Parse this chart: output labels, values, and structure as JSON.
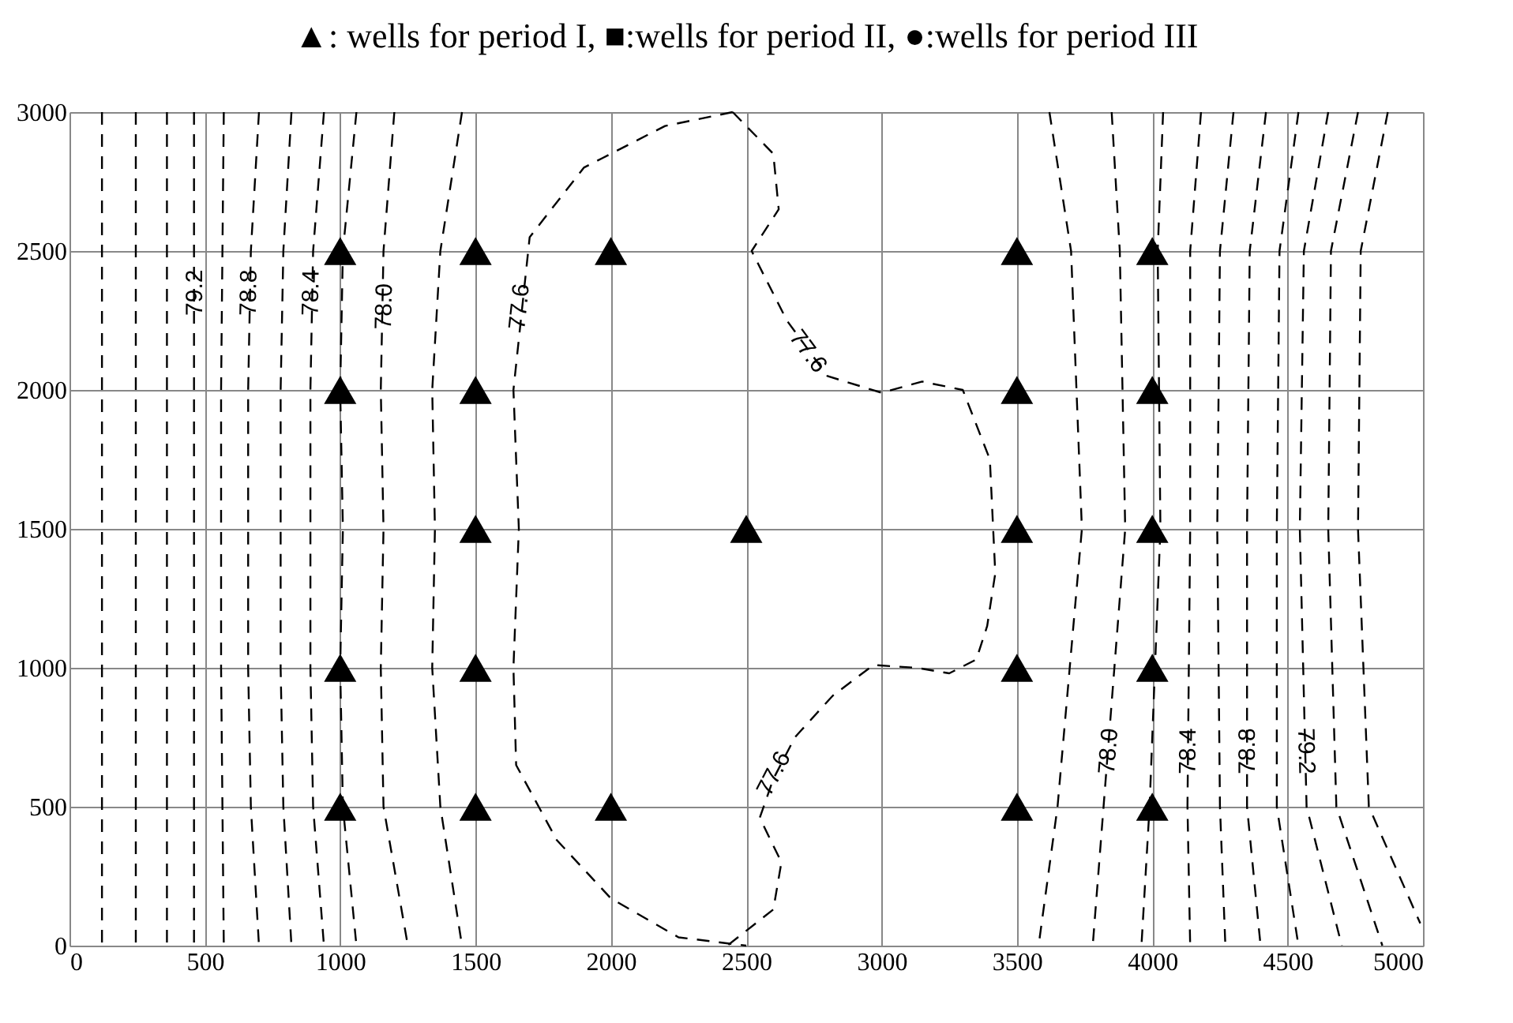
{
  "chart_data": {
    "type": "scatter",
    "title": "▲: wells for period I, ■:wells for period II, ●:wells for period III",
    "xlim": [
      0,
      5000
    ],
    "ylim": [
      0,
      3000
    ],
    "xticks": [
      0,
      500,
      1000,
      1500,
      2000,
      2500,
      3000,
      3500,
      4000,
      4500,
      5000
    ],
    "yticks": [
      0,
      500,
      1000,
      1500,
      2000,
      2500,
      3000
    ],
    "grid": true,
    "series": [
      {
        "type": "line",
        "line_style": "dashed",
        "marker": "none",
        "color": "#000000",
        "x": [
          120,
          120,
          120,
          120,
          120,
          120,
          120
        ],
        "values": [
          3000,
          2500,
          2000,
          1500,
          1000,
          500,
          0
        ]
      },
      {
        "type": "line",
        "line_style": "dashed",
        "marker": "none",
        "color": "#000000",
        "x": [
          245,
          245,
          245,
          245,
          245,
          245,
          245
        ],
        "values": [
          3000,
          2500,
          2000,
          1500,
          1000,
          500,
          0
        ]
      },
      {
        "type": "line",
        "line_style": "dashed",
        "marker": "none",
        "color": "#000000",
        "x": [
          360,
          360,
          360,
          360,
          360,
          360,
          360
        ],
        "values": [
          3000,
          2500,
          2000,
          1500,
          1000,
          500,
          0
        ]
      },
      {
        "type": "line",
        "line_style": "dashed",
        "marker": "none",
        "color": "#000000",
        "x": [
          460,
          460,
          460,
          460,
          460,
          460,
          460
        ],
        "values": [
          3000,
          2500,
          2000,
          1500,
          1000,
          500,
          0
        ]
      },
      {
        "type": "line",
        "line_style": "dashed",
        "marker": "none",
        "color": "#000000",
        "x": [
          570,
          565,
          560,
          560,
          560,
          565,
          570
        ],
        "values": [
          3000,
          2500,
          2000,
          1500,
          1000,
          500,
          0
        ]
      },
      {
        "type": "line",
        "line_style": "dashed",
        "marker": "none",
        "color": "#000000",
        "x": [
          700,
          670,
          660,
          660,
          660,
          670,
          700
        ],
        "values": [
          3000,
          2500,
          2000,
          1500,
          1000,
          500,
          0
        ]
      },
      {
        "type": "line",
        "line_style": "dashed",
        "marker": "none",
        "color": "#000000",
        "x": [
          820,
          790,
          780,
          780,
          780,
          790,
          820
        ],
        "values": [
          3000,
          2500,
          2000,
          1500,
          1000,
          500,
          0
        ]
      },
      {
        "type": "line",
        "line_style": "dashed",
        "marker": "none",
        "color": "#000000",
        "x": [
          940,
          900,
          890,
          890,
          890,
          900,
          940
        ],
        "values": [
          3000,
          2500,
          2000,
          1500,
          1000,
          500,
          0
        ]
      },
      {
        "type": "line",
        "line_style": "dashed",
        "marker": "none",
        "color": "#000000",
        "x": [
          1060,
          1010,
          1000,
          1010,
          1000,
          1010,
          1060
        ],
        "values": [
          3000,
          2500,
          2000,
          1500,
          1000,
          500,
          0
        ]
      },
      {
        "type": "line",
        "line_style": "dashed",
        "marker": "none",
        "color": "#000000",
        "x": [
          1200,
          1160,
          1150,
          1160,
          1150,
          1160,
          1250
        ],
        "values": [
          3000,
          2500,
          2000,
          1500,
          1000,
          500,
          0
        ]
      },
      {
        "type": "line",
        "line_style": "dashed",
        "marker": "none",
        "color": "#000000",
        "x": [
          1450,
          1370,
          1340,
          1350,
          1340,
          1370,
          1450
        ],
        "values": [
          3000,
          2500,
          2000,
          1500,
          1000,
          500,
          0
        ]
      },
      {
        "type": "line",
        "line_style": "dashed",
        "marker": "none",
        "color": "#000000",
        "x": [
          2450,
          2200,
          1900,
          1700,
          1640,
          1660,
          1640,
          1650,
          1800,
          2000,
          2250,
          2500
        ],
        "values": [
          3000,
          2950,
          2800,
          2550,
          2000,
          1500,
          1000,
          650,
          380,
          170,
          30,
          0
        ]
      },
      {
        "type": "line",
        "line_style": "dashed",
        "marker": "none",
        "color": "#000000",
        "x": [
          2450,
          2600,
          2620,
          2520,
          2650,
          2800,
          3000,
          3150,
          3300,
          3400,
          3420,
          3390,
          3350,
          3250,
          3130,
          2970,
          2820,
          2680,
          2600,
          2550,
          2630,
          2600,
          2430
        ],
        "values": [
          3000,
          2850,
          2650,
          2500,
          2250,
          2050,
          1990,
          2030,
          2000,
          1750,
          1340,
          1150,
          1030,
          980,
          1000,
          1010,
          900,
          750,
          600,
          460,
          300,
          130,
          0
        ]
      },
      {
        "type": "line",
        "line_style": "dashed",
        "marker": "none",
        "color": "#000000",
        "x": [
          3620,
          3700,
          3740,
          3650,
          3580
        ],
        "values": [
          3000,
          2500,
          1500,
          500,
          0
        ]
      },
      {
        "type": "line",
        "line_style": "dashed",
        "marker": "none",
        "color": "#000000",
        "x": [
          3850,
          3880,
          3900,
          3820,
          3780
        ],
        "values": [
          3000,
          2500,
          1500,
          500,
          0
        ]
      },
      {
        "type": "line",
        "line_style": "dashed",
        "marker": "none",
        "color": "#000000",
        "x": [
          4040,
          4020,
          4030,
          3990,
          3960
        ],
        "values": [
          3000,
          2500,
          1500,
          500,
          0
        ]
      },
      {
        "type": "line",
        "line_style": "dashed",
        "marker": "none",
        "color": "#000000",
        "x": [
          4180,
          4140,
          4140,
          4130,
          4140
        ],
        "values": [
          3000,
          2500,
          1500,
          500,
          0
        ]
      },
      {
        "type": "line",
        "line_style": "dashed",
        "marker": "none",
        "color": "#000000",
        "x": [
          4300,
          4250,
          4240,
          4250,
          4270
        ],
        "values": [
          3000,
          2500,
          1500,
          500,
          0
        ]
      },
      {
        "type": "line",
        "line_style": "dashed",
        "marker": "none",
        "color": "#000000",
        "x": [
          4420,
          4360,
          4350,
          4350,
          4400
        ],
        "values": [
          3000,
          2500,
          1500,
          500,
          0
        ]
      },
      {
        "type": "line",
        "line_style": "dashed",
        "marker": "none",
        "color": "#000000",
        "x": [
          4540,
          4470,
          4460,
          4460,
          4540
        ],
        "values": [
          3000,
          2500,
          1500,
          500,
          0
        ]
      },
      {
        "type": "line",
        "line_style": "dashed",
        "marker": "none",
        "color": "#000000",
        "x": [
          4650,
          4560,
          4545,
          4570,
          4700
        ],
        "values": [
          3000,
          2500,
          1500,
          500,
          0
        ]
      },
      {
        "type": "line",
        "line_style": "dashed",
        "marker": "none",
        "color": "#000000",
        "x": [
          4760,
          4660,
          4650,
          4680,
          4850
        ],
        "values": [
          3000,
          2500,
          1500,
          500,
          0
        ]
      },
      {
        "type": "line",
        "line_style": "dashed",
        "marker": "none",
        "color": "#000000",
        "x": [
          4870,
          4770,
          4760,
          4800,
          4990
        ],
        "values": [
          3000,
          2500,
          1500,
          500,
          80
        ]
      },
      {
        "marker": "triangle",
        "color": "#000000",
        "x": [
          1000,
          1500,
          2000,
          3500,
          4000,
          1000,
          1500,
          3500,
          4000,
          1500,
          2500,
          3500,
          4000,
          1000,
          1500,
          3500,
          4000,
          1000,
          1500,
          2000,
          3500,
          4000
        ],
        "values": [
          2500,
          2500,
          2500,
          2500,
          2500,
          2000,
          2000,
          2000,
          2000,
          1500,
          1500,
          1500,
          1500,
          1000,
          1000,
          1000,
          1000,
          500,
          500,
          500,
          500,
          500
        ]
      }
    ],
    "annotations": [
      {
        "text": "79.2",
        "x": 460,
        "y": 2350
      },
      {
        "text": "78.8",
        "x": 660,
        "y": 2350
      },
      {
        "text": "78.4",
        "x": 890,
        "y": 2350
      },
      {
        "text": "78.0",
        "x": 1160,
        "y": 2300
      },
      {
        "text": "77.6",
        "x": 1660,
        "y": 2300
      },
      {
        "text": "77.6",
        "x": 2730,
        "y": 2140
      },
      {
        "text": "77.6",
        "x": 2600,
        "y": 620
      },
      {
        "text": "78.0",
        "x": 3836,
        "y": 700
      },
      {
        "text": "78.4",
        "x": 4130,
        "y": 700
      },
      {
        "text": "78.8",
        "x": 4350,
        "y": 700
      },
      {
        "text": "79.2",
        "x": 4570,
        "y": 700
      }
    ]
  }
}
